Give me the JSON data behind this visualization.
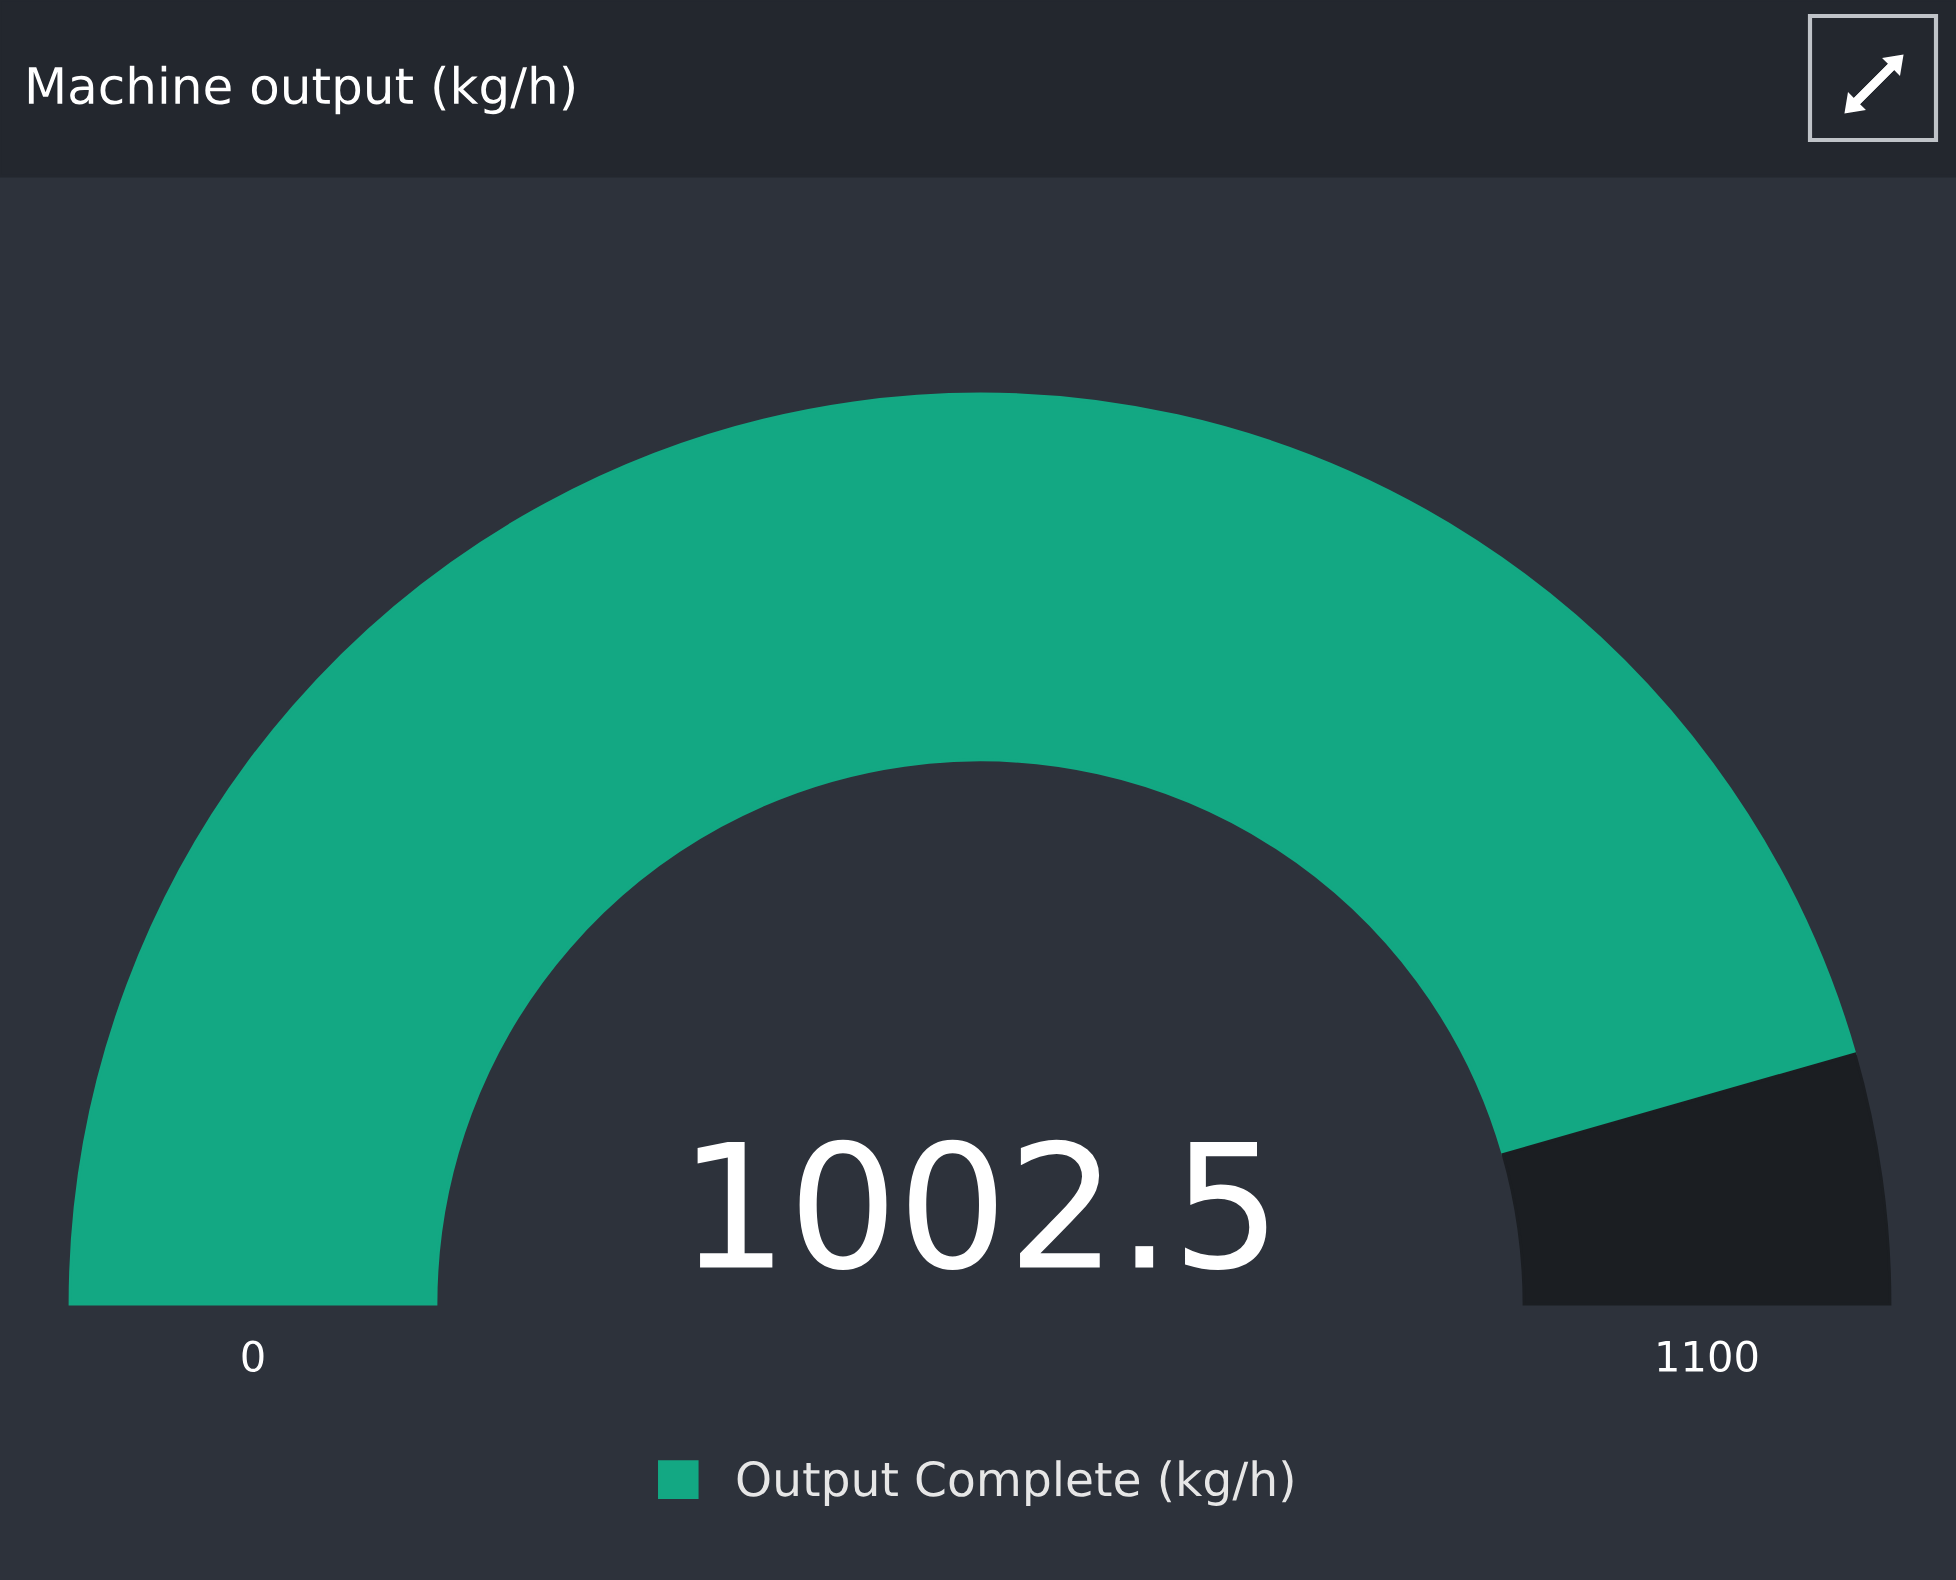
{
  "chart_data": {
    "type": "donut",
    "title": "Machine output (kg/h)",
    "categories": [
      "Output Complete (kg/h)",
      null
    ],
    "values": [
      1002.5,
      97.5
    ],
    "colors": [
      "#13a883",
      "#1b1e22"
    ],
    "value_labels": [
      "1002.5",
      null
    ],
    "annotations": [
      "0",
      "1100"
    ],
    "legend": "bottom"
  }
}
